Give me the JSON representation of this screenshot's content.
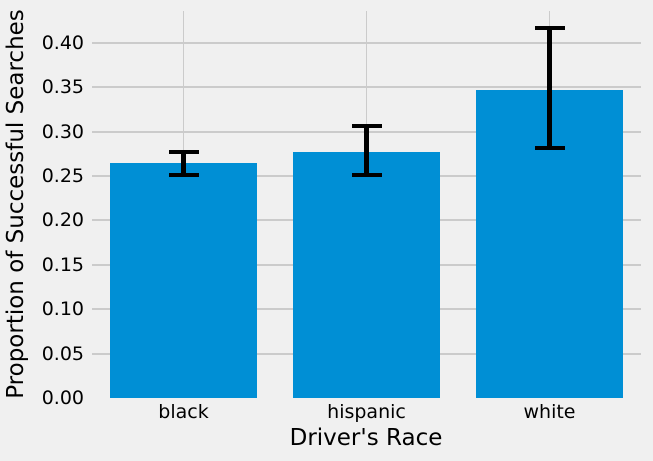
{
  "figure": {
    "background_color": "#f0f0f0",
    "grid_color": "#cbcbcb",
    "bar_color": "#008fd5",
    "error_bar_color": "#000000",
    "text_color": "#000000"
  },
  "chart_data": {
    "type": "bar",
    "title": "",
    "xlabel": "Driver's Race",
    "ylabel": "Proportion of Successful Searches",
    "categories": [
      "black",
      "hispanic",
      "white"
    ],
    "values": [
      0.265,
      0.277,
      0.347
    ],
    "error_low": [
      0.251,
      0.251,
      0.281
    ],
    "error_high": [
      0.277,
      0.306,
      0.417
    ],
    "yticks": [
      0,
      0.05,
      0.1,
      0.15,
      0.2,
      0.25,
      0.3,
      0.35,
      0.4
    ],
    "ytick_labels": [
      "0.00",
      "0.05",
      "0.10",
      "0.15",
      "0.20",
      "0.25",
      "0.30",
      "0.35",
      "0.40"
    ],
    "ylim": [
      0,
      0.4358
    ],
    "xlim_units": 3,
    "bar_width_fraction": 0.8,
    "grid": true,
    "legend": false,
    "style": "fivethirtyeight"
  }
}
